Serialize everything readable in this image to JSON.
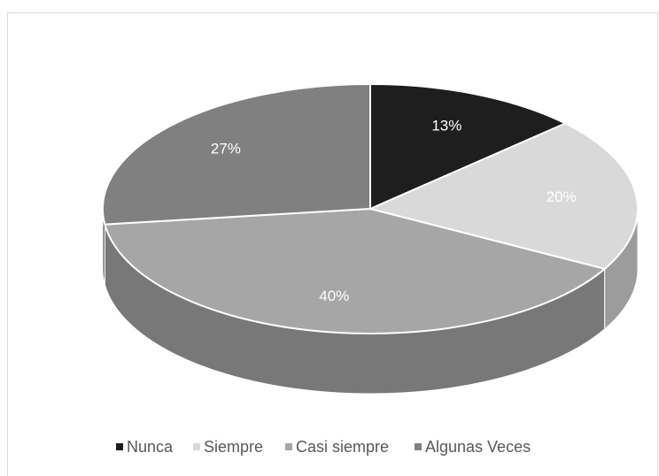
{
  "chart_data": {
    "type": "pie3d",
    "categories": [
      "Nunca",
      "Siempre",
      "Casi siempre",
      "Algunas Veces"
    ],
    "values": [
      13,
      20,
      40,
      27
    ],
    "value_labels": [
      "13%",
      "20%",
      "40%",
      "27%"
    ],
    "colors": [
      "#1e1e1e",
      "#d9d9d9",
      "#a6a6a6",
      "#808080"
    ],
    "legend": "bottom"
  }
}
